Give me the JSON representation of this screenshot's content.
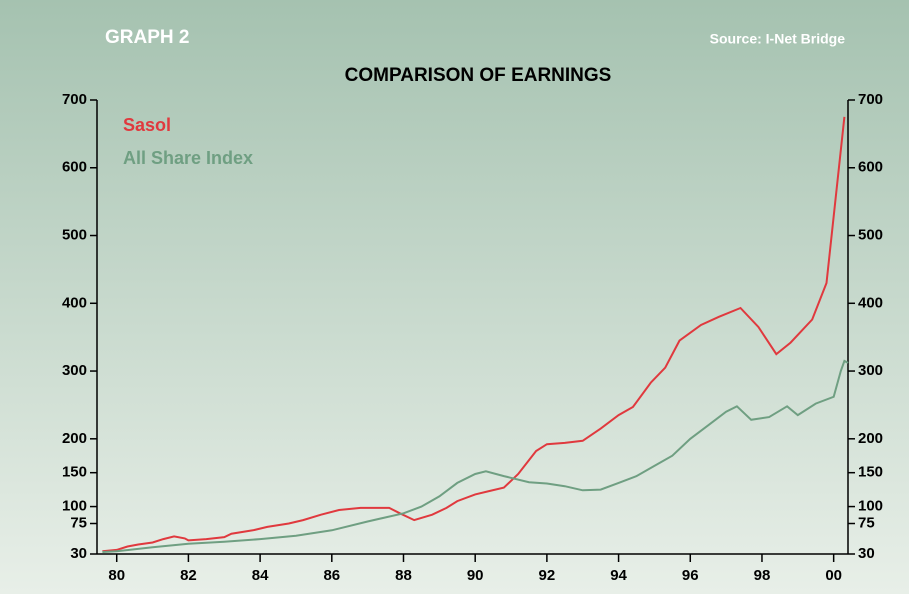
{
  "header": "GRAPH 2",
  "source": "Source: I-Net Bridge",
  "chart_data": {
    "type": "line",
    "title": "COMPARISON OF  EARNINGS",
    "xlim": [
      79.45,
      100.4
    ],
    "xticks": [
      80,
      82,
      84,
      86,
      88,
      90,
      92,
      94,
      96,
      98,
      {
        "value": 100,
        "label": "00"
      }
    ],
    "ylim": [
      30,
      700
    ],
    "yticks": [
      30,
      75,
      100,
      150,
      200,
      300,
      400,
      500,
      600,
      700
    ],
    "y2lim": [
      30,
      700
    ],
    "y2ticks": [
      30,
      75,
      100,
      150,
      200,
      300,
      400,
      500,
      600,
      700
    ],
    "series": [
      {
        "name": "Sasol",
        "color": "#e0393e",
        "x": [
          79.6,
          80.0,
          80.3,
          80.6,
          81.0,
          81.3,
          81.6,
          81.9,
          82.0,
          82.5,
          83.0,
          83.2,
          83.8,
          84.2,
          84.8,
          85.2,
          85.7,
          86.2,
          86.8,
          87.6,
          87.9,
          88.3,
          88.8,
          89.2,
          89.5,
          90.0,
          90.4,
          90.8,
          91.2,
          91.7,
          92.0,
          92.5,
          93.0,
          93.5,
          94.0,
          94.4,
          94.9,
          95.3,
          95.7,
          96.3,
          96.8,
          97.4,
          97.9,
          98.4,
          98.8,
          99.4,
          99.8,
          100.3
        ],
        "values": [
          34,
          36,
          41,
          44,
          47,
          52,
          56,
          53,
          50,
          52,
          55,
          60,
          65,
          70,
          75,
          80,
          88,
          95,
          98,
          98,
          90,
          80,
          88,
          98,
          108,
          118,
          123,
          128,
          148,
          182,
          192,
          194,
          197,
          215,
          235,
          247,
          283,
          305,
          345,
          368,
          380,
          393,
          365,
          325,
          342,
          376,
          430,
          675
        ]
      },
      {
        "name": "All Share Index",
        "color": "#6f9f82",
        "x": [
          79.6,
          80.0,
          81.0,
          82.0,
          83.0,
          84.0,
          85.0,
          86.0,
          87.0,
          88.0,
          88.5,
          89.0,
          89.5,
          90.0,
          90.3,
          90.8,
          91.5,
          92.0,
          92.5,
          93.0,
          93.5,
          94.0,
          94.5,
          95.0,
          95.5,
          96.0,
          96.5,
          97.0,
          97.3,
          97.7,
          98.2,
          98.7,
          99.0,
          99.5,
          100.0,
          100.2,
          100.3,
          100.4
        ],
        "values": [
          33,
          34,
          40,
          45,
          48,
          52,
          57,
          65,
          78,
          90,
          100,
          115,
          135,
          148,
          152,
          145,
          136,
          134,
          130,
          124,
          125,
          135,
          145,
          160,
          175,
          200,
          220,
          240,
          248,
          228,
          232,
          248,
          235,
          252,
          262,
          300,
          315,
          312
        ]
      }
    ]
  }
}
